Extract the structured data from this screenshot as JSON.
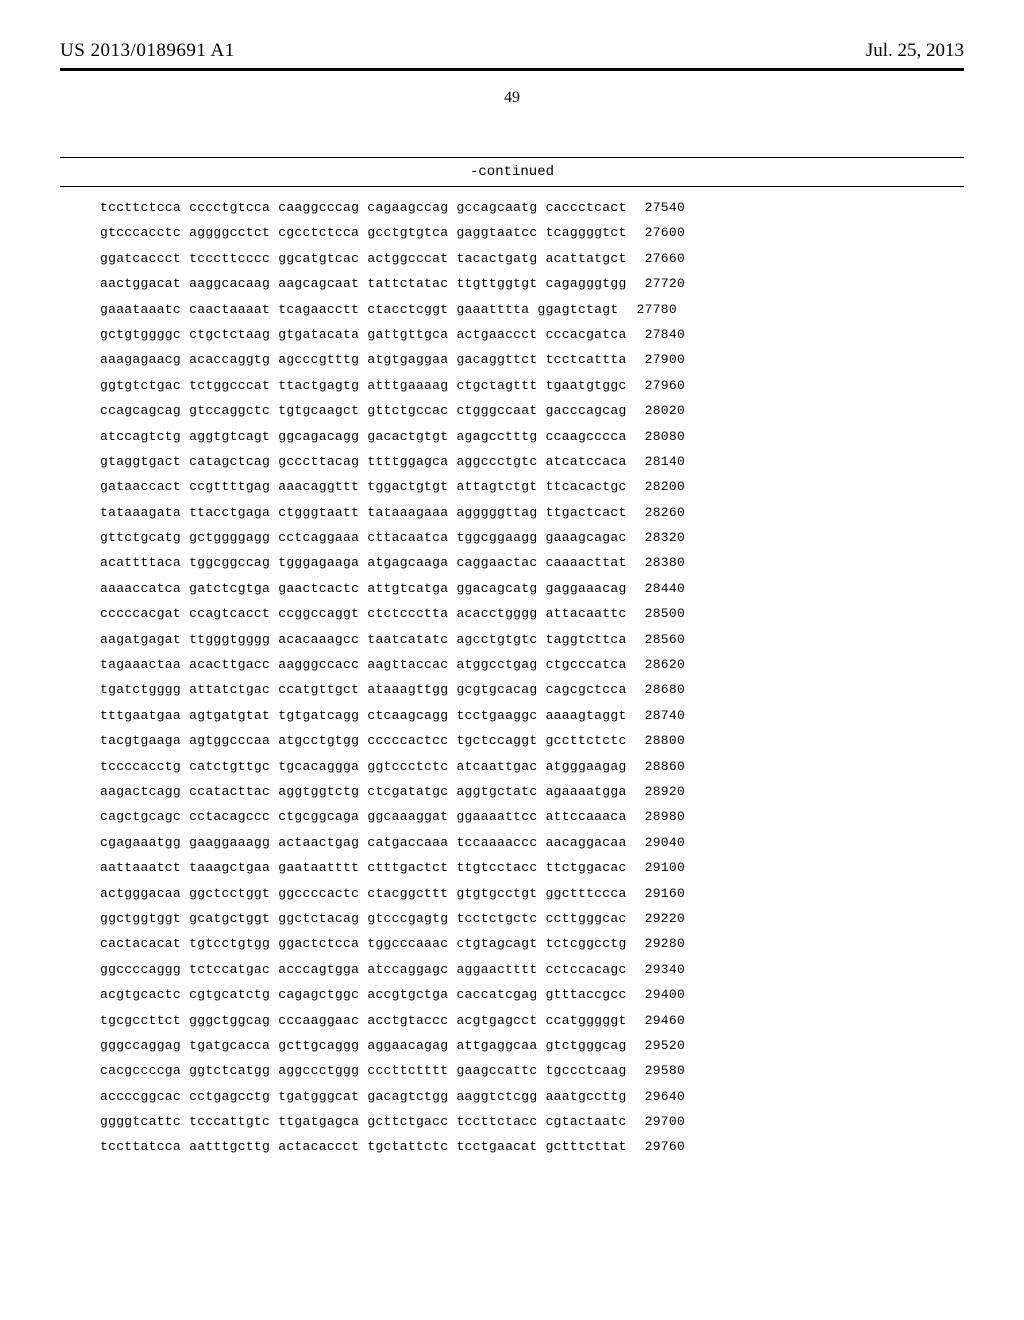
{
  "header": {
    "left": "US 2013/0189691 A1",
    "right": "Jul. 25, 2013"
  },
  "page_number": "49",
  "continued_label": "-continued",
  "sequence": {
    "rows": [
      {
        "groups": [
          "tccttctcca",
          "cccctgtcca",
          "caaggcccag",
          "cagaagccag",
          "gccagcaatg",
          "caccctcact"
        ],
        "pos": "27540"
      },
      {
        "groups": [
          "gtcccacctc",
          "aggggcctct",
          "cgcctctcca",
          "gcctgtgtca",
          "gaggtaatcc",
          "tcaggggtct"
        ],
        "pos": "27600"
      },
      {
        "groups": [
          "ggatcaccct",
          "tcccttcccc",
          "ggcatgtcac",
          "actggcccat",
          "tacactgatg",
          "acattatgct"
        ],
        "pos": "27660"
      },
      {
        "groups": [
          "aactggacat",
          "aaggcacaag",
          "aagcagcaat",
          "tattctatac",
          "ttgttggtgt",
          "cagagggtgg"
        ],
        "pos": "27720"
      },
      {
        "groups": [
          "gaaataaatc",
          "caactaaaat",
          "tcagaacctt",
          "ctacctcggt",
          "gaaatttta",
          "ggagtctagt"
        ],
        "pos": "27780"
      },
      {
        "groups": [
          "gctgtggggc",
          "ctgctctaag",
          "gtgatacata",
          "gattgttgca",
          "actgaaccct",
          "cccacgatca"
        ],
        "pos": "27840"
      },
      {
        "groups": [
          "aaagagaacg",
          "acaccaggtg",
          "agcccgtttg",
          "atgtgaggaa",
          "gacaggttct",
          "tcctcattta"
        ],
        "pos": "27900"
      },
      {
        "groups": [
          "ggtgtctgac",
          "tctggcccat",
          "ttactgagtg",
          "atttgaaaag",
          "ctgctagttt",
          "tgaatgtggc"
        ],
        "pos": "27960"
      },
      {
        "groups": [
          "ccagcagcag",
          "gtccaggctc",
          "tgtgcaagct",
          "gttctgccac",
          "ctgggccaat",
          "gacccagcag"
        ],
        "pos": "28020"
      },
      {
        "groups": [
          "atccagtctg",
          "aggtgtcagt",
          "ggcagacagg",
          "gacactgtgt",
          "agagcctttg",
          "ccaagcccca"
        ],
        "pos": "28080"
      },
      {
        "groups": [
          "gtaggtgact",
          "catagctcag",
          "gcccttacag",
          "ttttggagca",
          "aggccctgtc",
          "atcatccaca"
        ],
        "pos": "28140"
      },
      {
        "groups": [
          "gataaccact",
          "ccgttttgag",
          "aaacaggttt",
          "tggactgtgt",
          "attagtctgt",
          "ttcacactgc"
        ],
        "pos": "28200"
      },
      {
        "groups": [
          "tataaagata",
          "ttacctgaga",
          "ctgggtaatt",
          "tataaagaaa",
          "agggggttag",
          "ttgactcact"
        ],
        "pos": "28260"
      },
      {
        "groups": [
          "gttctgcatg",
          "gctggggagg",
          "cctcaggaaa",
          "cttacaatca",
          "tggcggaagg",
          "gaaagcagac"
        ],
        "pos": "28320"
      },
      {
        "groups": [
          "acattttaca",
          "tggcggccag",
          "tgggagaaga",
          "atgagcaaga",
          "caggaactac",
          "caaaacttat"
        ],
        "pos": "28380"
      },
      {
        "groups": [
          "aaaaccatca",
          "gatctcgtga",
          "gaactcactc",
          "attgtcatga",
          "ggacagcatg",
          "gaggaaacag"
        ],
        "pos": "28440"
      },
      {
        "groups": [
          "cccccacgat",
          "ccagtcacct",
          "ccggccaggt",
          "ctctccctta",
          "acacctgggg",
          "attacaattc"
        ],
        "pos": "28500"
      },
      {
        "groups": [
          "aagatgagat",
          "ttgggtgggg",
          "acacaaagcc",
          "taatcatatc",
          "agcctgtgtc",
          "taggtcttca"
        ],
        "pos": "28560"
      },
      {
        "groups": [
          "tagaaactaa",
          "acacttgacc",
          "aagggccacc",
          "aagttaccac",
          "atggcctgag",
          "ctgcccatca"
        ],
        "pos": "28620"
      },
      {
        "groups": [
          "tgatctgggg",
          "attatctgac",
          "ccatgttgct",
          "ataaagttgg",
          "gcgtgcacag",
          "cagcgctcca"
        ],
        "pos": "28680"
      },
      {
        "groups": [
          "tttgaatgaa",
          "agtgatgtat",
          "tgtgatcagg",
          "ctcaagcagg",
          "tcctgaaggc",
          "aaaagtaggt"
        ],
        "pos": "28740"
      },
      {
        "groups": [
          "tacgtgaaga",
          "agtggcccaa",
          "atgcctgtgg",
          "cccccactcc",
          "tgctccaggt",
          "gccttctctc"
        ],
        "pos": "28800"
      },
      {
        "groups": [
          "tccccacctg",
          "catctgttgc",
          "tgcacaggga",
          "ggtccctctc",
          "atcaattgac",
          "atgggaagag"
        ],
        "pos": "28860"
      },
      {
        "groups": [
          "aagactcagg",
          "ccatacttac",
          "aggtggtctg",
          "ctcgatatgc",
          "aggtgctatc",
          "agaaaatgga"
        ],
        "pos": "28920"
      },
      {
        "groups": [
          "cagctgcagc",
          "cctacagccc",
          "ctgcggcaga",
          "ggcaaaggat",
          "ggaaaattcc",
          "attccaaaca"
        ],
        "pos": "28980"
      },
      {
        "groups": [
          "cgagaaatgg",
          "gaaggaaagg",
          "actaactgag",
          "catgaccaaa",
          "tccaaaaccc",
          "aacaggacaa"
        ],
        "pos": "29040"
      },
      {
        "groups": [
          "aattaaatct",
          "taaagctgaa",
          "gaataatttt",
          "ctttgactct",
          "ttgtcctacc",
          "ttctggacac"
        ],
        "pos": "29100"
      },
      {
        "groups": [
          "actgggacaa",
          "ggctcctggt",
          "ggccccactc",
          "ctacggcttt",
          "gtgtgcctgt",
          "ggctttccca"
        ],
        "pos": "29160"
      },
      {
        "groups": [
          "ggctggtggt",
          "gcatgctggt",
          "ggctctacag",
          "gtcccgagtg",
          "tcctctgctc",
          "ccttgggcac"
        ],
        "pos": "29220"
      },
      {
        "groups": [
          "cactacacat",
          "tgtcctgtgg",
          "ggactctcca",
          "tggcccaaac",
          "ctgtagcagt",
          "tctcggcctg"
        ],
        "pos": "29280"
      },
      {
        "groups": [
          "ggccccaggg",
          "tctccatgac",
          "acccagtgga",
          "atccaggagc",
          "aggaactttt",
          "cctccacagc"
        ],
        "pos": "29340"
      },
      {
        "groups": [
          "acgtgcactc",
          "cgtgcatctg",
          "cagagctggc",
          "accgtgctga",
          "caccatcgag",
          "gtttaccgcc"
        ],
        "pos": "29400"
      },
      {
        "groups": [
          "tgcgccttct",
          "gggctggcag",
          "cccaaggaac",
          "acctgtaccc",
          "acgtgagcct",
          "ccatgggggt"
        ],
        "pos": "29460"
      },
      {
        "groups": [
          "gggccaggag",
          "tgatgcacca",
          "gcttgcaggg",
          "aggaacagag",
          "attgaggcaa",
          "gtctgggcag"
        ],
        "pos": "29520"
      },
      {
        "groups": [
          "cacgccccga",
          "ggtctcatgg",
          "aggccctggg",
          "cccttctttt",
          "gaagccattc",
          "tgccctcaag"
        ],
        "pos": "29580"
      },
      {
        "groups": [
          "accccggcac",
          "cctgagcctg",
          "tgatgggcat",
          "gacagtctgg",
          "aaggtctcgg",
          "aaatgccttg"
        ],
        "pos": "29640"
      },
      {
        "groups": [
          "ggggtcattc",
          "tcccattgtc",
          "ttgatgagca",
          "gcttctgacc",
          "tccttctacc",
          "cgtactaatc"
        ],
        "pos": "29700"
      },
      {
        "groups": [
          "tccttatcca",
          "aatttgcttg",
          "actacaccct",
          "tgctattctc",
          "tcctgaacat",
          "gctttcttat"
        ],
        "pos": "29760"
      }
    ]
  }
}
